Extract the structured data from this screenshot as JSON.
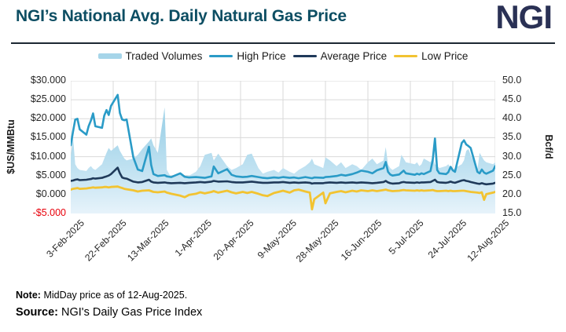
{
  "header": {
    "title": "NGI’s National Avg. Daily Natural Gas Price",
    "logo": "NGI"
  },
  "legend": {
    "items": [
      {
        "label": "Traded Volumes"
      },
      {
        "label": "High Price"
      },
      {
        "label": "Average Price"
      },
      {
        "label": "Low Price"
      }
    ]
  },
  "footer": {
    "note_label": "Note:",
    "note_text": "MidDay price as of 12-Aug-2025.",
    "source_label": "Source:",
    "source_text": "NGI's Daily Gas Price Index"
  },
  "colors": {
    "title": "#0d4e63",
    "logo": "#2a3155",
    "rule": "#1c2733",
    "grid": "#d9d9d9",
    "negative_tick": "#e8000b"
  },
  "chart_data": {
    "type": "area",
    "title": "NGI’s National Avg. Daily Natural Gas Price",
    "grid": true,
    "legend_position": "top",
    "left_axis": {
      "label": "$US/MMBtu",
      "min": -5,
      "max": 30,
      "ticks": [
        "$30.000",
        "$25.000",
        "$20.000",
        "$15.000",
        "$10.000",
        "$5.000",
        "$0.000",
        "-$5.000"
      ]
    },
    "right_axis": {
      "label": "Bcf/d",
      "min": 15,
      "max": 50,
      "ticks": [
        "50.0",
        "45.0",
        "40.0",
        "35.0",
        "30.0",
        "25.0",
        "20.0",
        "15.0"
      ]
    },
    "x_axis": {
      "tick_labels": [
        "3-Feb-2025",
        "22-Feb-2025",
        "13-Mar-2025",
        "1-Apr-2025",
        "20-Apr-2025",
        "9-May-2025",
        "28-May-2025",
        "16-Jun-2025",
        "5-Jul-2025",
        "24-Jul-2025",
        "12-Aug-2025"
      ]
    },
    "series": [
      {
        "name": "Traded Volumes",
        "type": "area",
        "axis": "right",
        "color": "#a6d5e9",
        "key": "volumes"
      },
      {
        "name": "High Price",
        "type": "line",
        "axis": "left",
        "color": "#2a9bc7",
        "key": "high"
      },
      {
        "name": "Average Price",
        "type": "line",
        "axis": "left",
        "color": "#1f3a5a",
        "key": "average"
      },
      {
        "name": "Low Price",
        "type": "line",
        "axis": "left",
        "color": "#f2c331",
        "key": "low"
      }
    ],
    "dates": [
      "2025-02-03",
      "2025-02-04",
      "2025-02-05",
      "2025-02-06",
      "2025-02-07",
      "2025-02-10",
      "2025-02-11",
      "2025-02-12",
      "2025-02-13",
      "2025-02-14",
      "2025-02-17",
      "2025-02-18",
      "2025-02-19",
      "2025-02-20",
      "2025-02-21",
      "2025-02-24",
      "2025-02-25",
      "2025-02-26",
      "2025-02-27",
      "2025-02-28",
      "2025-03-03",
      "2025-03-05",
      "2025-03-07",
      "2025-03-10",
      "2025-03-11",
      "2025-03-12",
      "2025-03-14",
      "2025-03-17",
      "2025-03-18",
      "2025-03-20",
      "2025-03-24",
      "2025-03-26",
      "2025-03-28",
      "2025-03-31",
      "2025-04-02",
      "2025-04-04",
      "2025-04-07",
      "2025-04-08",
      "2025-04-10",
      "2025-04-14",
      "2025-04-16",
      "2025-04-18",
      "2025-04-21",
      "2025-04-23",
      "2025-04-25",
      "2025-04-28",
      "2025-04-30",
      "2025-05-02",
      "2025-05-05",
      "2025-05-07",
      "2025-05-09",
      "2025-05-12",
      "2025-05-14",
      "2025-05-16",
      "2025-05-19",
      "2025-05-21",
      "2025-05-22",
      "2025-05-23",
      "2025-05-27",
      "2025-05-28",
      "2025-05-30",
      "2025-06-02",
      "2025-06-04",
      "2025-06-06",
      "2025-06-09",
      "2025-06-11",
      "2025-06-13",
      "2025-06-16",
      "2025-06-18",
      "2025-06-20",
      "2025-06-23",
      "2025-06-24",
      "2025-06-25",
      "2025-06-26",
      "2025-06-27",
      "2025-06-30",
      "2025-07-01",
      "2025-07-02",
      "2025-07-03",
      "2025-07-07",
      "2025-07-08",
      "2025-07-09",
      "2025-07-10",
      "2025-07-11",
      "2025-07-14",
      "2025-07-15",
      "2025-07-16",
      "2025-07-17",
      "2025-07-18",
      "2025-07-21",
      "2025-07-22",
      "2025-07-23",
      "2025-07-24",
      "2025-07-25",
      "2025-07-28",
      "2025-07-29",
      "2025-07-30",
      "2025-07-31",
      "2025-08-01",
      "2025-08-04",
      "2025-08-05",
      "2025-08-06",
      "2025-08-07",
      "2025-08-08",
      "2025-08-11",
      "2025-08-12"
    ],
    "high": [
      13.0,
      16.5,
      19.8,
      20.0,
      17.2,
      15.8,
      18.0,
      19.5,
      21.4,
      18.0,
      17.6,
      20.8,
      22.3,
      21.0,
      23.4,
      26.3,
      21.5,
      19.8,
      19.6,
      19.8,
      9.8,
      6.6,
      6.2,
      12.6,
      7.8,
      5.4,
      4.9,
      5.1,
      4.8,
      4.6,
      5.6,
      4.7,
      4.5,
      4.6,
      4.5,
      4.4,
      4.8,
      7.4,
      5.6,
      6.7,
      5.2,
      4.8,
      4.6,
      4.7,
      4.9,
      4.6,
      4.4,
      4.3,
      4.5,
      4.4,
      4.6,
      4.4,
      4.5,
      4.3,
      4.6,
      4.4,
      4.3,
      4.5,
      4.4,
      4.6,
      4.7,
      4.9,
      5.2,
      5.0,
      5.4,
      5.8,
      6.3,
      6.0,
      5.6,
      6.4,
      7.0,
      8.6,
      6.0,
      5.3,
      5.0,
      5.3,
      5.8,
      6.3,
      5.6,
      5.2,
      5.5,
      5.3,
      5.6,
      5.4,
      6.2,
      9.0,
      14.8,
      6.5,
      5.6,
      5.4,
      5.9,
      7.3,
      6.4,
      6.0,
      13.6,
      14.3,
      13.2,
      12.8,
      12.3,
      6.0,
      5.6,
      6.6,
      5.8,
      5.5,
      6.3,
      7.5
    ],
    "average": [
      3.6,
      3.7,
      3.9,
      4.0,
      3.8,
      3.9,
      4.0,
      4.1,
      4.3,
      4.2,
      4.4,
      4.6,
      4.8,
      5.0,
      5.4,
      7.1,
      5.6,
      4.5,
      4.3,
      4.2,
      3.4,
      3.2,
      3.3,
      3.9,
      3.4,
      3.2,
      3.1,
      3.2,
      3.1,
      3.0,
      3.1,
      3.0,
      3.1,
      3.2,
      3.3,
      3.2,
      3.4,
      3.6,
      3.4,
      3.5,
      3.3,
      3.2,
      3.2,
      3.3,
      3.4,
      3.2,
      3.1,
      3.1,
      3.2,
      3.2,
      3.3,
      3.1,
      3.2,
      3.1,
      3.2,
      3.1,
      2.9,
      3.0,
      3.0,
      3.1,
      3.2,
      3.1,
      3.2,
      3.1,
      3.2,
      3.1,
      3.2,
      3.1,
      3.0,
      3.1,
      3.3,
      3.6,
      3.2,
      3.0,
      2.9,
      3.0,
      3.2,
      3.3,
      3.2,
      3.1,
      3.2,
      3.1,
      3.2,
      3.2,
      3.3,
      3.6,
      3.9,
      3.3,
      3.2,
      3.1,
      3.2,
      3.4,
      3.2,
      3.1,
      3.7,
      3.8,
      3.6,
      3.5,
      3.3,
      2.9,
      2.8,
      3.0,
      2.8,
      2.7,
      2.9,
      3.1
    ],
    "low": [
      1.3,
      1.5,
      1.6,
      1.7,
      1.5,
      1.6,
      1.7,
      1.8,
      1.9,
      1.8,
      1.9,
      2.0,
      2.0,
      1.9,
      2.0,
      2.1,
      1.9,
      1.7,
      1.5,
      1.4,
      1.1,
      0.8,
      1.0,
      1.1,
      0.9,
      0.7,
      0.6,
      0.8,
      0.5,
      0.2,
      -0.3,
      -0.7,
      -0.1,
      0.2,
      0.6,
      0.3,
      0.7,
      0.9,
      0.5,
      1.0,
      0.6,
      0.3,
      0.7,
      0.4,
      0.7,
      0.2,
      -0.2,
      -0.4,
      0.4,
      0.7,
      1.0,
      0.5,
      1.1,
      1.3,
      0.8,
      0.5,
      -3.9,
      -1.2,
      0.5,
      -2.3,
      0.3,
      0.7,
      0.9,
      0.6,
      1.0,
      0.8,
      1.1,
      0.9,
      1.1,
      0.9,
      1.2,
      1.3,
      1.1,
      1.0,
      0.9,
      1.0,
      1.1,
      1.2,
      1.1,
      1.0,
      1.1,
      1.0,
      1.1,
      1.0,
      1.1,
      1.2,
      1.0,
      0.9,
      0.9,
      1.0,
      0.9,
      1.0,
      0.9,
      0.9,
      1.0,
      1.0,
      0.9,
      0.8,
      0.7,
      0.5,
      0.4,
      0.6,
      -1.4,
      0.1,
      0.5,
      0.7
    ],
    "volumes": [
      30.0,
      35.2,
      28.0,
      27.0,
      26.5,
      26.2,
      27.0,
      27.5,
      26.8,
      26.5,
      28.0,
      29.5,
      31.0,
      32.3,
      31.5,
      33.0,
      31.5,
      30.5,
      29.5,
      29.0,
      29.5,
      30.5,
      32.0,
      34.0,
      34.8,
      33.0,
      31.0,
      43.0,
      26.5,
      24.5,
      25.5,
      24.8,
      25.0,
      26.0,
      27.5,
      30.5,
      31.0,
      29.0,
      30.8,
      27.5,
      26.5,
      27.0,
      28.0,
      30.5,
      30.8,
      27.0,
      25.5,
      26.0,
      26.5,
      25.8,
      27.0,
      26.0,
      25.5,
      26.5,
      27.5,
      28.5,
      29.5,
      28.0,
      27.0,
      29.8,
      29.0,
      27.5,
      28.5,
      27.0,
      28.0,
      27.5,
      26.5,
      28.5,
      29.5,
      28.0,
      29.0,
      32.5,
      28.0,
      27.0,
      26.5,
      27.5,
      30.5,
      29.5,
      28.5,
      28.0,
      28.5,
      27.5,
      28.0,
      29.5,
      28.5,
      30.0,
      28.0,
      27.5,
      27.0,
      27.5,
      28.0,
      27.0,
      26.5,
      27.0,
      28.0,
      29.0,
      31.5,
      32.0,
      30.5,
      26.5,
      31.0,
      30.0,
      29.0,
      28.5,
      28.0,
      28.5
    ]
  }
}
